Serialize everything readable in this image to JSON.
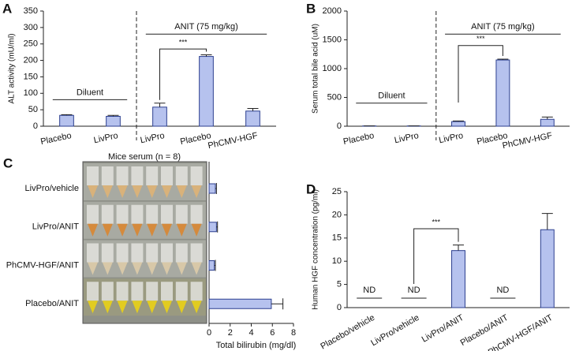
{
  "chart_data": [
    {
      "type": "bar",
      "panel_label": "A",
      "ylabel": "ALT activity (mU/ml)",
      "categories": [
        "Placebo",
        "LivPro",
        "LivPro",
        "Placebo",
        "PhCMV-HGF"
      ],
      "values": [
        33,
        30,
        58,
        212,
        46
      ],
      "errors": [
        2,
        3,
        12,
        5,
        8
      ],
      "color": "#b6c2ee",
      "ylim": [
        0,
        350
      ],
      "yticks": [
        0,
        50,
        100,
        150,
        200,
        250,
        300,
        350
      ],
      "group_labels": [
        "Diluent",
        "ANIT (75 mg/kg)"
      ],
      "significance": "***"
    },
    {
      "type": "bar",
      "panel_label": "B",
      "ylabel": "Serum total bile acid (uM)",
      "categories": [
        "Placebo",
        "LivPro",
        "LivPro",
        "Placebo",
        "PhCMV-HGF"
      ],
      "values": [
        5,
        5,
        80,
        1150,
        120
      ],
      "errors": [
        0,
        0,
        10,
        15,
        40
      ],
      "color": "#b6c2ee",
      "ylim": [
        0,
        2000
      ],
      "yticks": [
        0,
        500,
        1000,
        1500,
        2000
      ],
      "group_labels": [
        "Diluent",
        "ANIT (75 mg/kg)"
      ],
      "significance": "***"
    },
    {
      "type": "hbar",
      "panel_label": "C",
      "title": "Mice serum (n = 8)",
      "xlabel": "Total bilirubin (mg/dl)",
      "categories": [
        "LivPro/vehicle",
        "LivPro/ANIT",
        "PhCMV-HGF/ANIT",
        "Placebo/ANIT"
      ],
      "values": [
        0.6,
        0.7,
        0.5,
        5.9
      ],
      "errors": [
        0.1,
        0.1,
        0.1,
        1.1
      ],
      "color": "#b6c2ee",
      "xlim": [
        0,
        8
      ],
      "xticks": [
        0,
        2,
        4,
        6,
        8
      ]
    },
    {
      "type": "bar",
      "panel_label": "D",
      "ylabel": "Human HGF concentration (pg/ml)",
      "categories": [
        "Placebo/vehicle",
        "LivPro/vehicle",
        "LivPro/ANIT",
        "Placebo/ANIT",
        "PhCMV-HGF/ANIT"
      ],
      "values": [
        null,
        null,
        12.3,
        null,
        16.8
      ],
      "value_labels": [
        "ND",
        "ND",
        null,
        "ND",
        null
      ],
      "errors": [
        null,
        null,
        1.2,
        null,
        3.5
      ],
      "color": "#b6c2ee",
      "ylim": [
        0,
        25
      ],
      "yticks": [
        0,
        5,
        10,
        15,
        20,
        25
      ],
      "significance": "***"
    }
  ]
}
